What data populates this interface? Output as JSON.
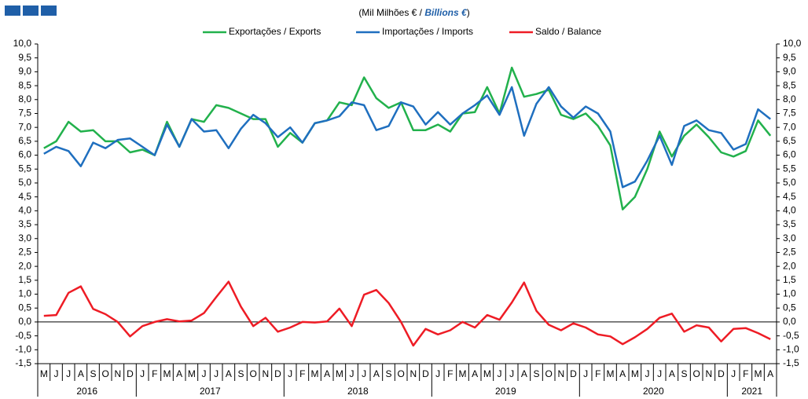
{
  "chart_data": {
    "type": "line",
    "subtitle": [
      "(Mil Milhões € /",
      "Billions €",
      ")"
    ],
    "categories": [
      "M",
      "J",
      "J",
      "A",
      "S",
      "O",
      "N",
      "D",
      "J",
      "F",
      "M",
      "A",
      "M",
      "J",
      "J",
      "A",
      "S",
      "O",
      "N",
      "D",
      "J",
      "F",
      "M",
      "A",
      "M",
      "J",
      "J",
      "A",
      "S",
      "O",
      "N",
      "D",
      "J",
      "F",
      "M",
      "A",
      "M",
      "J",
      "J",
      "A",
      "S",
      "O",
      "N",
      "D",
      "J",
      "F",
      "M",
      "A",
      "M",
      "J",
      "J",
      "A",
      "S",
      "O",
      "N",
      "D",
      "J",
      "F",
      "M",
      "A"
    ],
    "years": [
      "2016",
      "2017",
      "2018",
      "2019",
      "2020",
      "2021"
    ],
    "series": [
      {
        "name": "Exportações / Exports",
        "color": "#22b14c",
        "values": [
          6.25,
          6.5,
          7.2,
          6.85,
          6.9,
          6.5,
          6.5,
          6.1,
          6.2,
          6.0,
          7.2,
          6.3,
          7.3,
          7.2,
          7.8,
          7.7,
          7.5,
          7.3,
          7.3,
          6.3,
          6.8,
          6.45,
          7.15,
          7.25,
          7.9,
          7.8,
          8.8,
          8.05,
          7.7,
          7.9,
          6.9,
          6.9,
          7.1,
          6.85,
          7.5,
          7.55,
          8.45,
          7.5,
          9.15,
          8.1,
          8.2,
          8.35,
          7.45,
          7.3,
          7.5,
          7.05,
          6.35,
          4.05,
          4.5,
          5.5,
          6.85,
          5.95,
          6.7,
          7.1,
          6.65,
          6.1,
          5.95,
          6.15,
          7.25,
          6.7
        ]
      },
      {
        "name": "Importações / Imports",
        "color": "#1f6fbf",
        "values": [
          6.05,
          6.3,
          6.15,
          5.6,
          6.45,
          6.25,
          6.55,
          6.6,
          6.3,
          6.0,
          7.1,
          6.3,
          7.3,
          6.85,
          6.9,
          6.25,
          6.95,
          7.45,
          7.15,
          6.65,
          7.0,
          6.45,
          7.15,
          7.25,
          7.4,
          7.9,
          7.8,
          6.9,
          7.05,
          7.9,
          7.75,
          7.1,
          7.55,
          7.1,
          7.5,
          7.8,
          8.15,
          7.45,
          8.45,
          6.7,
          7.85,
          8.45,
          7.75,
          7.35,
          7.75,
          7.5,
          6.85,
          4.85,
          5.05,
          5.8,
          6.7,
          5.65,
          7.05,
          7.25,
          6.9,
          6.8,
          6.2,
          6.4,
          7.65,
          7.3
        ]
      },
      {
        "name": "Saldo / Balance",
        "color": "#ee1c25",
        "values": [
          0.22,
          0.25,
          1.05,
          1.28,
          0.47,
          0.28,
          0.0,
          -0.52,
          -0.15,
          0.0,
          0.1,
          0.02,
          0.05,
          0.32,
          0.9,
          1.45,
          0.55,
          -0.15,
          0.15,
          -0.35,
          -0.2,
          0.0,
          -0.02,
          0.02,
          0.48,
          -0.15,
          0.98,
          1.15,
          0.68,
          0.0,
          -0.85,
          -0.25,
          -0.45,
          -0.3,
          0.0,
          -0.2,
          0.25,
          0.08,
          0.7,
          1.42,
          0.4,
          -0.1,
          -0.3,
          -0.05,
          -0.2,
          -0.45,
          -0.52,
          -0.8,
          -0.55,
          -0.25,
          0.15,
          0.3,
          -0.35,
          -0.12,
          -0.2,
          -0.7,
          -0.25,
          -0.22,
          -0.4,
          -0.62
        ]
      }
    ],
    "ylim": [
      -1.5,
      10
    ],
    "yticks": [
      {
        "value": 10,
        "label": "10,0"
      },
      {
        "value": 9.5,
        "label": "9,5"
      },
      {
        "value": 9,
        "label": "9,0"
      },
      {
        "value": 8.5,
        "label": "8,5"
      },
      {
        "value": 8,
        "label": "8,0"
      },
      {
        "value": 7.5,
        "label": "7,5"
      },
      {
        "value": 7,
        "label": "7,0"
      },
      {
        "value": 6.5,
        "label": "6,5"
      },
      {
        "value": 6,
        "label": "6,0"
      },
      {
        "value": 5.5,
        "label": "5,5"
      },
      {
        "value": 5,
        "label": "5,0"
      },
      {
        "value": 4.5,
        "label": "4,5"
      },
      {
        "value": 4,
        "label": "4,0"
      },
      {
        "value": 3.5,
        "label": "3,5"
      },
      {
        "value": 3,
        "label": "3,0"
      },
      {
        "value": 2.5,
        "label": "2,5"
      },
      {
        "value": 2,
        "label": "2,0"
      },
      {
        "value": 1.5,
        "label": "1,5"
      },
      {
        "value": 1,
        "label": "1,0"
      },
      {
        "value": 0.5,
        "label": "0,5"
      },
      {
        "value": 0,
        "label": "0,0"
      },
      {
        "value": -0.5,
        "label": "-0,5"
      },
      {
        "value": -1,
        "label": "-1,0"
      },
      {
        "value": -1.5,
        "label": "-1,5"
      }
    ],
    "legend": "top",
    "grid": false
  }
}
